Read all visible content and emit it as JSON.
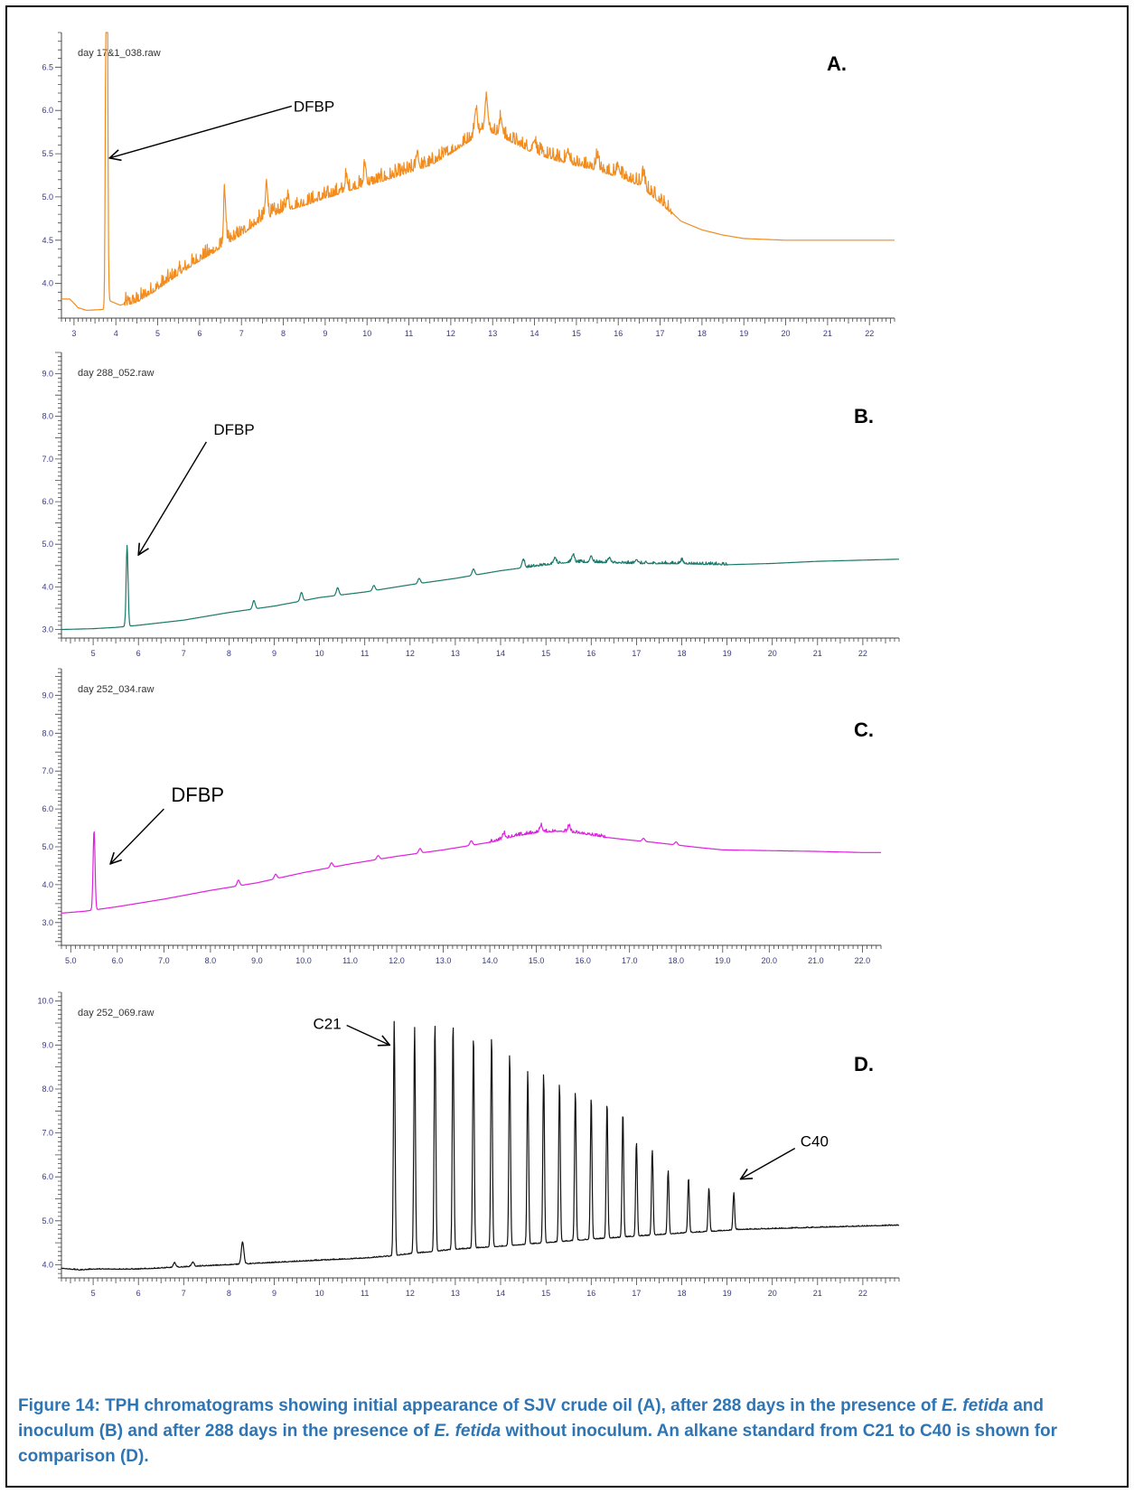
{
  "chart_data": [
    {
      "type": "line",
      "panel": "A.",
      "file_label": "day 17&1_038.raw",
      "color": "#f28c1f",
      "xlim": [
        2.7,
        22.6
      ],
      "ylim": [
        3.6,
        6.9
      ],
      "x_ticks": [
        "3",
        "4",
        "5",
        "6",
        "7",
        "8",
        "9",
        "10",
        "11",
        "12",
        "13",
        "14",
        "15",
        "16",
        "17",
        "18",
        "19",
        "20",
        "21",
        "22"
      ],
      "y_ticks": [
        "4.0",
        "4.5",
        "5.0",
        "5.5",
        "6.0",
        "6.5"
      ],
      "trace": {
        "baseline": [
          [
            2.7,
            3.82
          ],
          [
            2.9,
            3.82
          ],
          [
            3.1,
            3.72
          ],
          [
            3.3,
            3.69
          ],
          [
            3.7,
            3.7
          ],
          [
            3.85,
            3.8
          ],
          [
            4.1,
            3.75
          ],
          [
            4.5,
            3.8
          ],
          [
            5.0,
            3.95
          ],
          [
            5.5,
            4.12
          ],
          [
            6.0,
            4.28
          ],
          [
            6.5,
            4.42
          ],
          [
            7.0,
            4.58
          ],
          [
            7.5,
            4.75
          ],
          [
            8.0,
            4.85
          ],
          [
            8.5,
            4.92
          ],
          [
            9.0,
            5.0
          ],
          [
            9.5,
            5.08
          ],
          [
            10.0,
            5.15
          ],
          [
            10.5,
            5.22
          ],
          [
            11.0,
            5.3
          ],
          [
            11.5,
            5.38
          ],
          [
            12.0,
            5.52
          ],
          [
            12.5,
            5.68
          ],
          [
            12.8,
            5.78
          ],
          [
            13.0,
            5.76
          ],
          [
            13.5,
            5.64
          ],
          [
            14.0,
            5.52
          ],
          [
            14.5,
            5.44
          ],
          [
            15.0,
            5.38
          ],
          [
            15.5,
            5.32
          ],
          [
            16.0,
            5.25
          ],
          [
            16.5,
            5.15
          ],
          [
            17.0,
            4.95
          ],
          [
            17.5,
            4.72
          ],
          [
            18.0,
            4.62
          ],
          [
            18.5,
            4.56
          ],
          [
            19.0,
            4.52
          ],
          [
            20.0,
            4.5
          ],
          [
            21.0,
            4.5
          ],
          [
            22.6,
            4.5
          ]
        ],
        "peaks": [
          [
            3.78,
            6.9,
            0.03
          ],
          [
            6.6,
            0.6,
            0.04
          ],
          [
            7.6,
            0.4,
            0.04
          ],
          [
            8.1,
            0.15,
            0.04
          ],
          [
            9.5,
            0.15,
            0.04
          ],
          [
            9.95,
            0.25,
            0.04
          ],
          [
            11.2,
            0.2,
            0.04
          ],
          [
            12.6,
            0.3,
            0.05
          ],
          [
            12.85,
            0.4,
            0.05
          ],
          [
            13.2,
            0.2,
            0.05
          ],
          [
            14.0,
            0.15,
            0.05
          ],
          [
            14.8,
            0.12,
            0.05
          ],
          [
            15.5,
            0.15,
            0.05
          ],
          [
            16.0,
            0.12,
            0.05
          ],
          [
            16.6,
            0.15,
            0.05
          ]
        ],
        "noise": 0.07,
        "noise_range": [
          4.2,
          17.3
        ]
      },
      "annotations": [
        {
          "text": "DFBP",
          "arrow_from": [
            8.2,
            6.05
          ],
          "arrow_to": [
            3.85,
            5.45
          ]
        }
      ]
    },
    {
      "type": "line",
      "panel": "B.",
      "file_label": "day 288_052.raw",
      "color": "#1a7a6a",
      "xlim": [
        4.3,
        22.8
      ],
      "ylim": [
        2.8,
        9.5
      ],
      "x_ticks": [
        "5",
        "6",
        "7",
        "8",
        "9",
        "10",
        "11",
        "12",
        "13",
        "14",
        "15",
        "16",
        "17",
        "18",
        "19",
        "20",
        "21",
        "22"
      ],
      "y_ticks": [
        "3.0",
        "4.0",
        "5.0",
        "6.0",
        "7.0",
        "8.0",
        "9.0"
      ],
      "trace": {
        "baseline": [
          [
            4.3,
            3.0
          ],
          [
            5.0,
            3.02
          ],
          [
            5.5,
            3.05
          ],
          [
            6.0,
            3.1
          ],
          [
            7.0,
            3.22
          ],
          [
            8.0,
            3.4
          ],
          [
            9.0,
            3.55
          ],
          [
            10.0,
            3.75
          ],
          [
            11.0,
            3.88
          ],
          [
            12.0,
            4.05
          ],
          [
            13.0,
            4.2
          ],
          [
            14.0,
            4.38
          ],
          [
            15.0,
            4.52
          ],
          [
            15.5,
            4.58
          ],
          [
            16.0,
            4.58
          ],
          [
            17.0,
            4.55
          ],
          [
            18.0,
            4.55
          ],
          [
            19.0,
            4.52
          ],
          [
            20.0,
            4.55
          ],
          [
            21.0,
            4.6
          ],
          [
            22.8,
            4.65
          ]
        ],
        "peaks": [
          [
            5.75,
            1.9,
            0.03
          ],
          [
            8.55,
            0.2,
            0.04
          ],
          [
            9.6,
            0.2,
            0.04
          ],
          [
            10.4,
            0.18,
            0.04
          ],
          [
            11.2,
            0.12,
            0.04
          ],
          [
            12.2,
            0.12,
            0.04
          ],
          [
            13.4,
            0.15,
            0.04
          ],
          [
            14.5,
            0.2,
            0.04
          ],
          [
            15.2,
            0.15,
            0.04
          ],
          [
            15.6,
            0.18,
            0.04
          ],
          [
            16.0,
            0.15,
            0.04
          ],
          [
            16.4,
            0.12,
            0.04
          ],
          [
            17.0,
            0.1,
            0.04
          ],
          [
            18.0,
            0.08,
            0.04
          ]
        ],
        "noise": 0.03,
        "noise_range": [
          14.5,
          19.0
        ]
      },
      "annotations": [
        {
          "text": "DFBP",
          "arrow_from": [
            7.5,
            7.4
          ],
          "arrow_to": [
            6.0,
            4.75
          ]
        }
      ]
    },
    {
      "type": "line",
      "panel": "C.",
      "file_label": "day 252_034.raw",
      "color": "#e020e0",
      "xlim": [
        4.8,
        22.4
      ],
      "ylim": [
        2.4,
        9.7
      ],
      "x_ticks": [
        "5.0",
        "6.0",
        "7.0",
        "8.0",
        "9.0",
        "10.0",
        "11.0",
        "12.0",
        "13.0",
        "14.0",
        "15.0",
        "16.0",
        "17.0",
        "18.0",
        "19.0",
        "20.0",
        "21.0",
        "22.0"
      ],
      "y_ticks": [
        "3.0",
        "4.0",
        "5.0",
        "6.0",
        "7.0",
        "8.0",
        "9.0"
      ],
      "trace": {
        "baseline": [
          [
            4.8,
            3.25
          ],
          [
            5.3,
            3.3
          ],
          [
            5.6,
            3.35
          ],
          [
            6.0,
            3.42
          ],
          [
            7.0,
            3.62
          ],
          [
            8.0,
            3.85
          ],
          [
            9.0,
            4.05
          ],
          [
            10.0,
            4.32
          ],
          [
            11.0,
            4.55
          ],
          [
            12.0,
            4.75
          ],
          [
            13.0,
            4.92
          ],
          [
            14.0,
            5.12
          ],
          [
            14.5,
            5.28
          ],
          [
            15.0,
            5.38
          ],
          [
            15.5,
            5.42
          ],
          [
            16.0,
            5.35
          ],
          [
            16.5,
            5.25
          ],
          [
            17.0,
            5.18
          ],
          [
            17.5,
            5.12
          ],
          [
            18.0,
            5.05
          ],
          [
            18.5,
            4.98
          ],
          [
            19.0,
            4.92
          ],
          [
            20.0,
            4.9
          ],
          [
            21.0,
            4.88
          ],
          [
            22.0,
            4.85
          ]
        ],
        "peaks": [
          [
            5.5,
            2.1,
            0.03
          ],
          [
            8.6,
            0.15,
            0.04
          ],
          [
            9.4,
            0.12,
            0.04
          ],
          [
            10.6,
            0.12,
            0.04
          ],
          [
            11.6,
            0.1,
            0.04
          ],
          [
            12.5,
            0.12,
            0.04
          ],
          [
            13.6,
            0.12,
            0.04
          ],
          [
            14.3,
            0.15,
            0.04
          ],
          [
            15.1,
            0.18,
            0.04
          ],
          [
            15.7,
            0.15,
            0.04
          ],
          [
            17.3,
            0.08,
            0.04
          ],
          [
            18.0,
            0.08,
            0.04
          ]
        ],
        "noise": 0.04,
        "noise_range": [
          14.0,
          16.5
        ]
      },
      "annotations": [
        {
          "text": "DFBP",
          "arrow_from": [
            7.0,
            6.0
          ],
          "arrow_to": [
            5.85,
            4.55
          ]
        }
      ]
    },
    {
      "type": "line",
      "panel": "D.",
      "file_label": "day 252_069.raw",
      "color": "#111111",
      "xlim": [
        4.3,
        22.8
      ],
      "ylim": [
        3.7,
        10.2
      ],
      "x_ticks": [
        "5",
        "6",
        "7",
        "8",
        "9",
        "10",
        "11",
        "12",
        "13",
        "14",
        "15",
        "16",
        "17",
        "18",
        "19",
        "20",
        "21",
        "22"
      ],
      "y_ticks": [
        "4.0",
        "5.0",
        "6.0",
        "7.0",
        "8.0",
        "9.0",
        "10.0"
      ],
      "trace": {
        "baseline": [
          [
            4.3,
            3.92
          ],
          [
            4.7,
            3.88
          ],
          [
            5.0,
            3.9
          ],
          [
            6.0,
            3.9
          ],
          [
            7.0,
            3.95
          ],
          [
            8.0,
            4.0
          ],
          [
            9.0,
            4.05
          ],
          [
            10.0,
            4.1
          ],
          [
            11.0,
            4.15
          ],
          [
            11.6,
            4.2
          ],
          [
            12.0,
            4.25
          ],
          [
            13.0,
            4.35
          ],
          [
            14.0,
            4.42
          ],
          [
            15.0,
            4.5
          ],
          [
            16.0,
            4.58
          ],
          [
            17.0,
            4.65
          ],
          [
            18.0,
            4.72
          ],
          [
            19.0,
            4.78
          ],
          [
            19.2,
            4.8
          ],
          [
            20.0,
            4.82
          ],
          [
            21.0,
            4.85
          ],
          [
            22.8,
            4.9
          ]
        ],
        "peaks": [
          [
            6.8,
            0.1,
            0.04
          ],
          [
            7.2,
            0.1,
            0.04
          ],
          [
            8.3,
            0.5,
            0.04
          ],
          [
            11.65,
            5.35,
            0.025
          ],
          [
            12.1,
            5.15,
            0.025
          ],
          [
            12.55,
            5.2,
            0.025
          ],
          [
            12.95,
            5.15,
            0.025
          ],
          [
            13.4,
            4.85,
            0.025
          ],
          [
            13.8,
            4.8,
            0.025
          ],
          [
            14.2,
            4.35,
            0.025
          ],
          [
            14.6,
            3.95,
            0.025
          ],
          [
            14.95,
            3.85,
            0.025
          ],
          [
            15.3,
            3.6,
            0.025
          ],
          [
            15.65,
            3.4,
            0.025
          ],
          [
            16.0,
            3.25,
            0.025
          ],
          [
            16.35,
            3.1,
            0.025
          ],
          [
            16.7,
            2.85,
            0.025
          ],
          [
            17.0,
            2.15,
            0.025
          ],
          [
            17.35,
            1.95,
            0.025
          ],
          [
            17.7,
            1.45,
            0.025
          ],
          [
            18.15,
            1.25,
            0.025
          ],
          [
            18.6,
            1.0,
            0.025
          ],
          [
            19.15,
            0.85,
            0.025
          ]
        ],
        "noise": 0.01,
        "noise_range": [
          4.3,
          22.8
        ]
      },
      "annotations": [
        {
          "text": "C21",
          "arrow_from": [
            10.6,
            9.45
          ],
          "arrow_to": [
            11.55,
            9.0
          ]
        },
        {
          "text": "C40",
          "arrow_from": [
            20.5,
            6.65
          ],
          "arrow_to": [
            19.3,
            5.95
          ]
        }
      ]
    }
  ],
  "caption": {
    "part1": "Figure 14: TPH chromatograms showing initial appearance of SJV crude oil (A), after 288 days in the presence of ",
    "italic1": "E. fetida",
    "part2": " and inoculum (B) and after 288 days in the presence of ",
    "italic2": "E. fetida",
    "part3": " without inoculum.  An alkane standard from C21 to C40 is shown for comparison (D)."
  }
}
